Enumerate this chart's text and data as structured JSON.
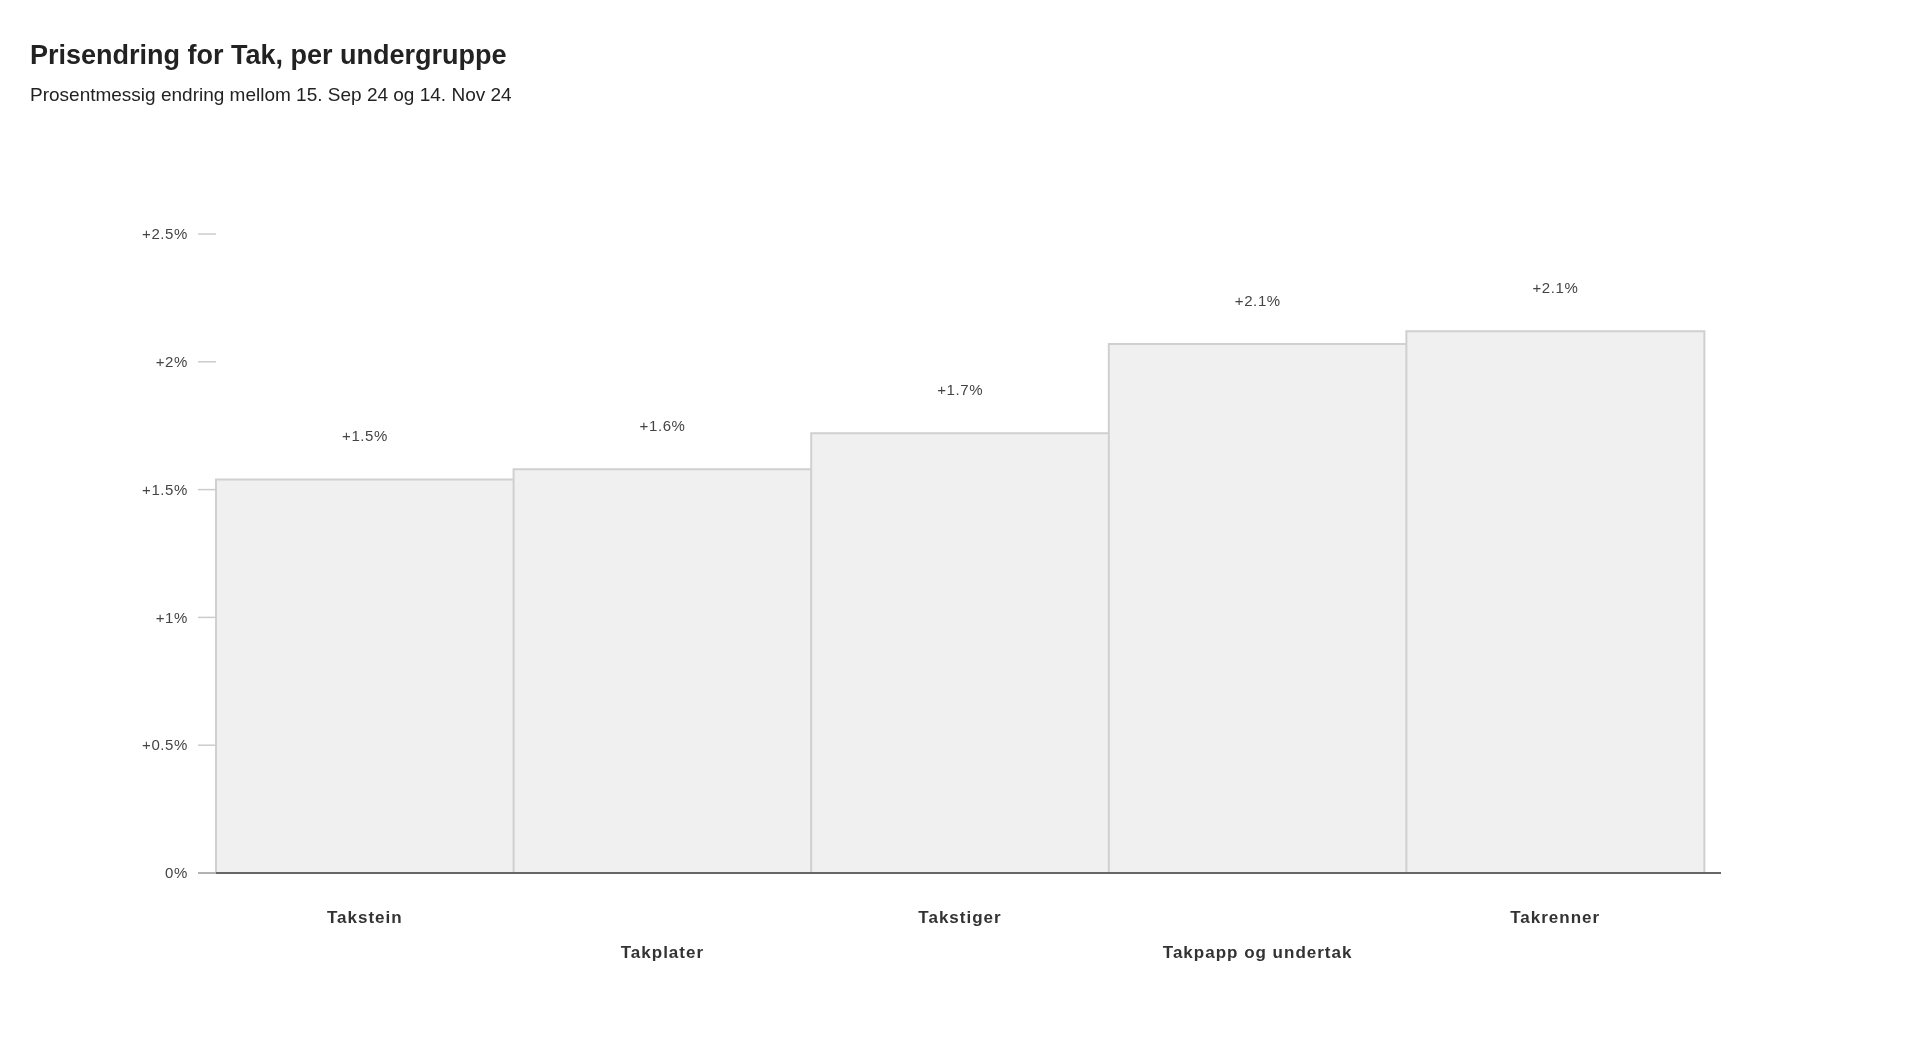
{
  "chart_data": {
    "type": "bar",
    "title": "Prisendring for Tak, per undergruppe",
    "subtitle": "Prosentmessig endring mellom 15. Sep 24 og 14. Nov 24",
    "categories": [
      "Takstein",
      "Takplater",
      "Takstiger",
      "Takpapp og undertak",
      "Takrenner"
    ],
    "values": [
      1.54,
      1.58,
      1.72,
      2.07,
      2.12
    ],
    "value_labels": [
      "+1.5%",
      "+1.6%",
      "+1.7%",
      "+2.1%",
      "+2.1%"
    ],
    "color": "#f0f0f0",
    "ylim": [
      0,
      2.5
    ],
    "yticks": [
      {
        "value": 0,
        "label": "0%"
      },
      {
        "value": 0.5,
        "label": "+0.5%"
      },
      {
        "value": 1,
        "label": "+1%"
      },
      {
        "value": 1.5,
        "label": "+1.5%"
      },
      {
        "value": 2,
        "label": "+2%"
      },
      {
        "value": 2.5,
        "label": "+2.5%"
      }
    ]
  }
}
